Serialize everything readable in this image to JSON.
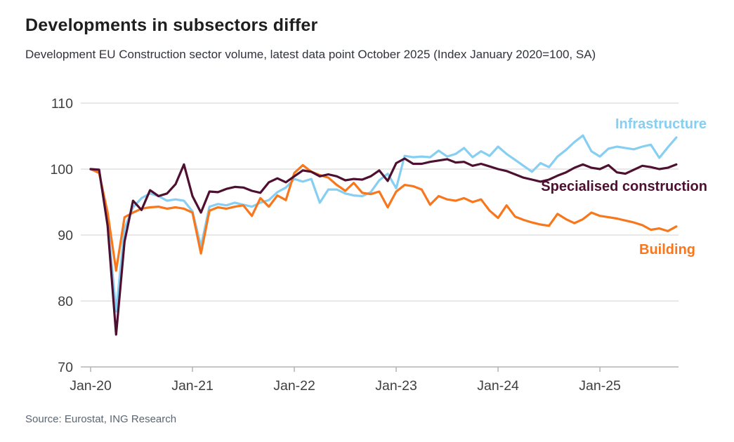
{
  "header": {
    "title": "Developments in subsectors differ",
    "subtitle": "Development EU Construction sector volume, latest data point October 2025 (Index January 2020=100, SA)"
  },
  "footer": {
    "source": "Source: Eurostat, ING Research"
  },
  "chart_data": {
    "type": "line",
    "title": "Developments in subsectors differ",
    "x_start_month": "Jan-2020",
    "x_end_month": "Oct-2025",
    "x_tick_labels": [
      "Jan-20",
      "Jan-21",
      "Jan-22",
      "Jan-23",
      "Jan-24",
      "Jan-25"
    ],
    "y_tick_labels": [
      "70",
      "80",
      "90",
      "100",
      "110"
    ],
    "ylim": [
      70,
      110
    ],
    "yticks": [
      70,
      80,
      90,
      100,
      110
    ],
    "grid": "horizontal",
    "legend_position": "inline-right-of-lines",
    "axis_color": "#b3b3b3",
    "grid_color": "#d9d9d9",
    "tick_text_color": "#3f3f3f",
    "series": [
      {
        "name": "Infrastructure",
        "color": "#86CEF2",
        "values": [
          100,
          99.6,
          92.2,
          78.4,
          91,
          94.2,
          95.6,
          96.3,
          95.9,
          95.2,
          95.4,
          95.2,
          93.6,
          88.3,
          94.3,
          94.7,
          94.5,
          94.9,
          94.6,
          94.3,
          94.9,
          95.3,
          96.5,
          97.2,
          98.5,
          98.1,
          98.5,
          94.9,
          96.9,
          96.9,
          96.3,
          96,
          95.9,
          96.5,
          98.3,
          99.3,
          97.1,
          102,
          101.8,
          101.9,
          101.8,
          102.8,
          101.9,
          102.3,
          103.2,
          101.8,
          102.7,
          102,
          103.4,
          102.3,
          101.4,
          100.5,
          99.6,
          100.9,
          100.3,
          101.9,
          102.9,
          104.1,
          105.1,
          102.7,
          101.9,
          103.1,
          103.4,
          103.2,
          103,
          103.4,
          103.7,
          101.7,
          103.3,
          104.8
        ]
      },
      {
        "name": "Building",
        "color": "#F8761C",
        "values": [
          100,
          99.4,
          93.4,
          84.6,
          92.7,
          93.4,
          94,
          94.2,
          94.3,
          94,
          94.2,
          94,
          93.4,
          87.2,
          93.7,
          94.2,
          94,
          94.3,
          94.5,
          92.9,
          95.6,
          94.3,
          96,
          95.3,
          99.4,
          100.6,
          99.6,
          99.1,
          98.7,
          97.6,
          96.7,
          97.9,
          96.4,
          96.2,
          96.6,
          94.2,
          96.6,
          97.6,
          97.4,
          96.9,
          94.6,
          95.9,
          95.4,
          95.2,
          95.6,
          95,
          95.4,
          93.7,
          92.6,
          94.5,
          92.8,
          92.3,
          91.9,
          91.6,
          91.4,
          93.2,
          92.4,
          91.8,
          92.4,
          93.4,
          92.9,
          92.7,
          92.5,
          92.2,
          91.9,
          91.5,
          90.8,
          91,
          90.6,
          91.3
        ]
      },
      {
        "name": "Specialised construction",
        "color": "#4E1030",
        "values": [
          100,
          99.9,
          91.4,
          74.9,
          89,
          95.2,
          93.8,
          96.8,
          95.9,
          96.3,
          97.7,
          100.7,
          95.9,
          93.4,
          96.6,
          96.5,
          97,
          97.3,
          97.2,
          96.7,
          96.4,
          98,
          98.6,
          98,
          98.9,
          99.8,
          99.6,
          98.9,
          99.2,
          98.9,
          98.3,
          98.5,
          98.4,
          98.9,
          99.8,
          98.2,
          100.9,
          101.6,
          100.8,
          100.8,
          101.1,
          101.3,
          101.5,
          101,
          101.1,
          100.5,
          100.8,
          100.4,
          100,
          99.7,
          99.2,
          98.7,
          98.4,
          98.1,
          98.4,
          99,
          99.5,
          100.2,
          100.7,
          100.2,
          100,
          100.6,
          99.5,
          99.3,
          99.9,
          100.5,
          100.3,
          100,
          100.2,
          100.7
        ]
      }
    ]
  }
}
